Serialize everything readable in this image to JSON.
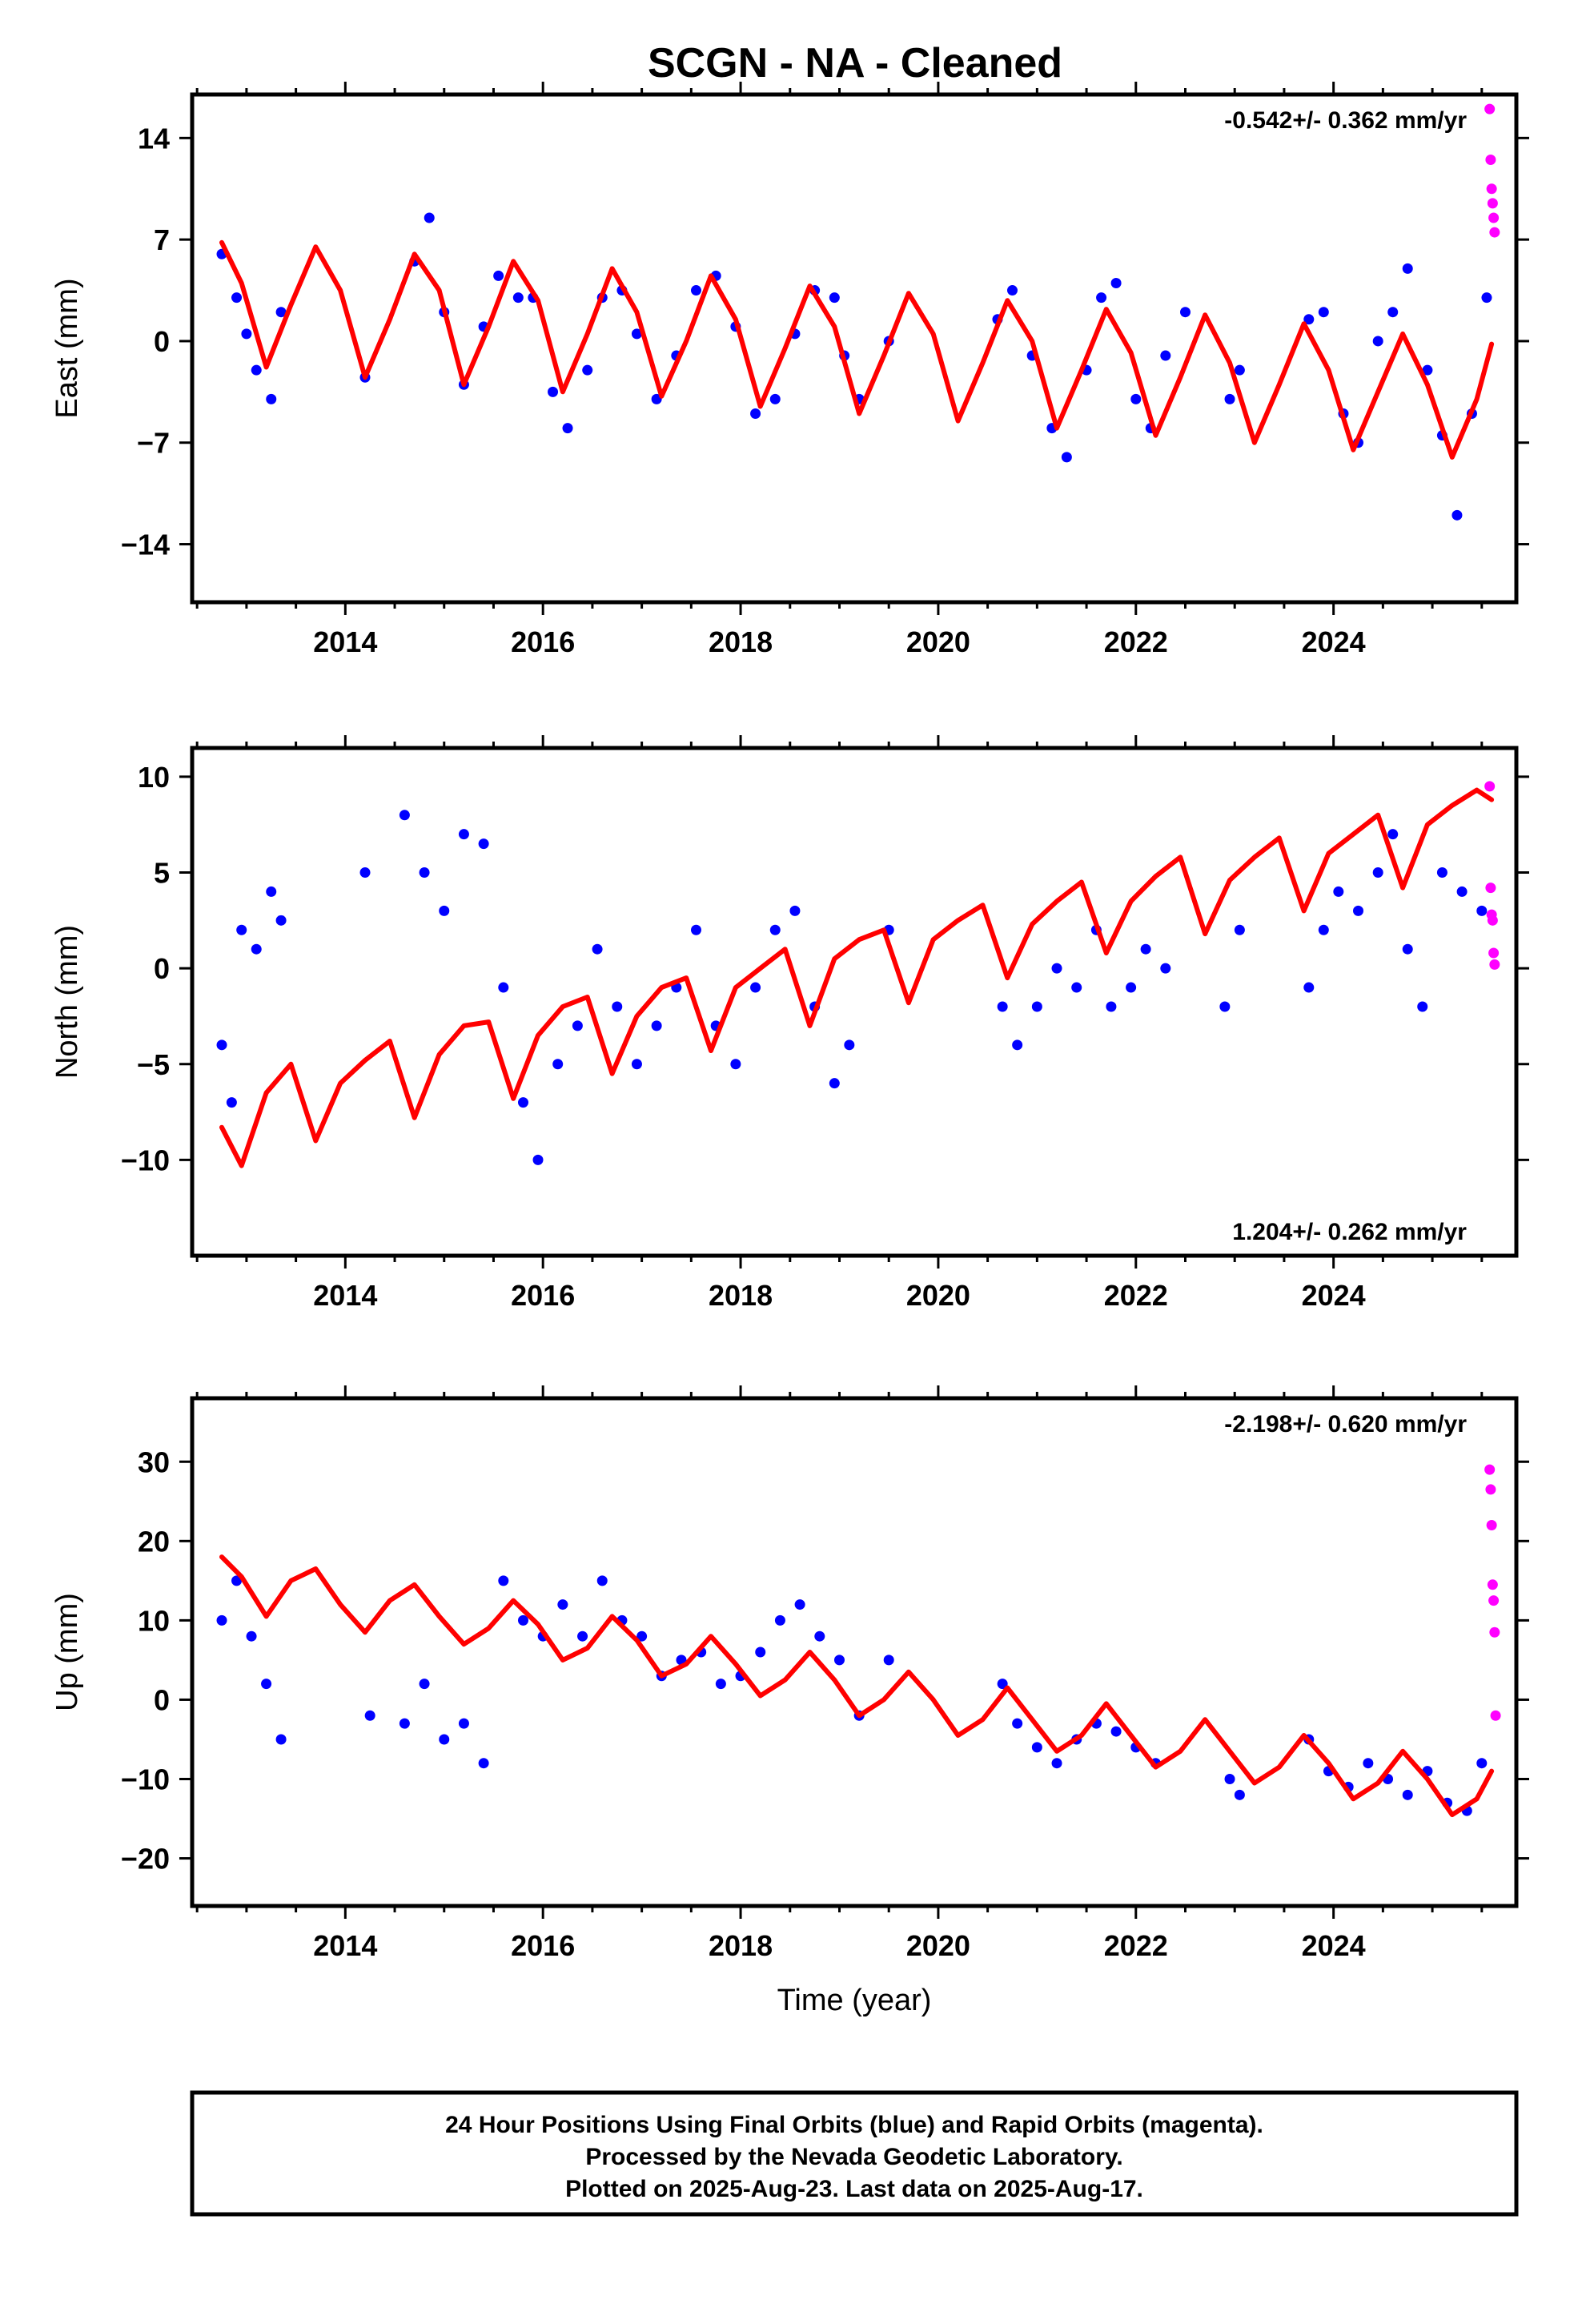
{
  "figure": {
    "title": "SCGN  - NA - Cleaned",
    "footer": [
      "24 Hour Positions Using Final Orbits (blue) and Rapid Orbits (magenta).",
      "Processed by the Nevada Geodetic Laboratory.",
      "Plotted on 2025-Aug-23. Last data on 2025-Aug-17."
    ],
    "colors": {
      "final": "#0000ff",
      "rapid": "#ff00ff",
      "model": "#ff0000",
      "frame": "#000000"
    }
  },
  "chart_data": [
    {
      "type": "scatter",
      "title": "",
      "xlabel": "",
      "ylabel": "East (mm)",
      "rate_label": "-0.542+/- 0.362 mm/yr",
      "rate_position": "top-right",
      "xlim": [
        2012.45,
        2025.85
      ],
      "ylim": [
        -18,
        17
      ],
      "xticks": [
        2014,
        2016,
        2018,
        2020,
        2022,
        2024
      ],
      "xtick_labels": [
        "2014",
        "2016",
        "2018",
        "2020",
        "2022",
        "2024"
      ],
      "yticks": [
        -14,
        -7,
        0,
        7,
        14
      ],
      "ytick_labels": [
        "−14",
        "−7",
        "0",
        "7",
        "14"
      ],
      "grid": false,
      "series": [
        {
          "name": "Final Orbits",
          "x": [
            2012.75,
            2012.9,
            2013.0,
            2013.1,
            2013.25,
            2013.35,
            2014.2,
            2014.7,
            2014.85,
            2015.0,
            2015.2,
            2015.4,
            2015.55,
            2015.75,
            2015.9,
            2016.1,
            2016.25,
            2016.45,
            2016.6,
            2016.8,
            2016.95,
            2017.15,
            2017.35,
            2017.55,
            2017.75,
            2017.95,
            2018.15,
            2018.35,
            2018.55,
            2018.75,
            2018.95,
            2019.05,
            2019.2,
            2019.5,
            2020.6,
            2020.75,
            2020.95,
            2021.15,
            2021.3,
            2021.5,
            2021.65,
            2021.8,
            2022.0,
            2022.15,
            2022.3,
            2022.5,
            2022.95,
            2023.05,
            2023.75,
            2023.9,
            2024.1,
            2024.25,
            2024.45,
            2024.6,
            2024.75,
            2024.95,
            2025.1,
            2025.25,
            2025.4,
            2025.55
          ],
          "y": [
            6.0,
            3.0,
            0.5,
            -2.0,
            -4.0,
            2.0,
            -2.5,
            5.5,
            8.5,
            2.0,
            -3.0,
            1.0,
            4.5,
            3.0,
            3.0,
            -3.5,
            -6.0,
            -2.0,
            3.0,
            3.5,
            0.5,
            -4.0,
            -1.0,
            3.5,
            4.5,
            1.0,
            -5.0,
            -4.0,
            0.5,
            3.5,
            3.0,
            -1.0,
            -4.0,
            0.0,
            1.5,
            3.5,
            -1.0,
            -6.0,
            -8.0,
            -2.0,
            3.0,
            4.0,
            -4.0,
            -6.0,
            -1.0,
            2.0,
            -4.0,
            -2.0,
            1.5,
            2.0,
            -5.0,
            -7.0,
            0.0,
            2.0,
            5.0,
            -2.0,
            -6.5,
            -12.0,
            -5.0,
            3.0
          ]
        },
        {
          "name": "Rapid Orbits",
          "x": [
            2025.58,
            2025.59,
            2025.6,
            2025.61,
            2025.62,
            2025.63
          ],
          "y": [
            16.0,
            12.5,
            10.5,
            9.5,
            8.5,
            7.5
          ]
        }
      ],
      "model_curve": {
        "x": [
          2012.75,
          2012.95,
          2013.2,
          2013.45,
          2013.7,
          2013.95,
          2014.2,
          2014.45,
          2014.7,
          2014.95,
          2015.2,
          2015.45,
          2015.7,
          2015.95,
          2016.2,
          2016.45,
          2016.7,
          2016.95,
          2017.2,
          2017.45,
          2017.7,
          2017.95,
          2018.2,
          2018.45,
          2018.7,
          2018.95,
          2019.2,
          2019.45,
          2019.7,
          2019.95,
          2020.2,
          2020.45,
          2020.7,
          2020.95,
          2021.2,
          2021.45,
          2021.7,
          2021.95,
          2022.2,
          2022.45,
          2022.7,
          2022.95,
          2023.2,
          2023.45,
          2023.7,
          2023.95,
          2024.2,
          2024.45,
          2024.7,
          2024.95,
          2025.2,
          2025.45,
          2025.6
        ],
        "y": [
          6.8,
          4.0,
          -1.8,
          2.5,
          6.5,
          3.5,
          -2.5,
          1.5,
          6.0,
          3.5,
          -3.0,
          1.0,
          5.5,
          2.8,
          -3.5,
          0.5,
          5.0,
          2.0,
          -3.8,
          0.0,
          4.5,
          1.5,
          -4.5,
          -0.5,
          3.8,
          1.0,
          -5.0,
          -1.0,
          3.3,
          0.5,
          -5.5,
          -1.5,
          2.8,
          0.0,
          -6.0,
          -2.0,
          2.2,
          -0.8,
          -6.5,
          -2.5,
          1.8,
          -1.5,
          -7.0,
          -3.0,
          1.2,
          -2.0,
          -7.5,
          -3.5,
          0.5,
          -3.0,
          -8.0,
          -4.0,
          -0.2
        ]
      }
    },
    {
      "type": "scatter",
      "title": "",
      "xlabel": "",
      "ylabel": "North (mm)",
      "rate_label": "1.204+/- 0.262 mm/yr",
      "rate_position": "bottom-right",
      "xlim": [
        2012.45,
        2025.85
      ],
      "ylim": [
        -15,
        11.5
      ],
      "xticks": [
        2014,
        2016,
        2018,
        2020,
        2022,
        2024
      ],
      "xtick_labels": [
        "2014",
        "2016",
        "2018",
        "2020",
        "2022",
        "2024"
      ],
      "yticks": [
        -10,
        -5,
        0,
        5,
        10
      ],
      "ytick_labels": [
        "−10",
        "−5",
        "0",
        "5",
        "10"
      ],
      "grid": false,
      "series": [
        {
          "name": "Final Orbits",
          "x": [
            2012.75,
            2012.85,
            2012.95,
            2013.1,
            2013.25,
            2013.35,
            2014.2,
            2014.6,
            2014.8,
            2015.0,
            2015.2,
            2015.4,
            2015.6,
            2015.8,
            2015.95,
            2016.15,
            2016.35,
            2016.55,
            2016.75,
            2016.95,
            2017.15,
            2017.35,
            2017.55,
            2017.75,
            2017.95,
            2018.15,
            2018.35,
            2018.55,
            2018.75,
            2018.95,
            2019.1,
            2019.5,
            2020.65,
            2020.8,
            2021.0,
            2021.2,
            2021.4,
            2021.6,
            2021.75,
            2021.95,
            2022.1,
            2022.3,
            2022.9,
            2023.05,
            2023.75,
            2023.9,
            2024.05,
            2024.25,
            2024.45,
            2024.6,
            2024.75,
            2024.9,
            2025.1,
            2025.3,
            2025.5
          ],
          "y": [
            -4.0,
            -7.0,
            2.0,
            1.0,
            4.0,
            2.5,
            5.0,
            8.0,
            5.0,
            3.0,
            7.0,
            6.5,
            -1.0,
            -7.0,
            -10.0,
            -5.0,
            -3.0,
            1.0,
            -2.0,
            -5.0,
            -3.0,
            -1.0,
            2.0,
            -3.0,
            -5.0,
            -1.0,
            2.0,
            3.0,
            -2.0,
            -6.0,
            -4.0,
            2.0,
            -2.0,
            -4.0,
            -2.0,
            0.0,
            -1.0,
            2.0,
            -2.0,
            -1.0,
            1.0,
            0.0,
            -2.0,
            2.0,
            -1.0,
            2.0,
            4.0,
            3.0,
            5.0,
            7.0,
            1.0,
            -2.0,
            5.0,
            4.0,
            3.0
          ]
        },
        {
          "name": "Rapid Orbits",
          "x": [
            2025.58,
            2025.59,
            2025.6,
            2025.61,
            2025.62,
            2025.63
          ],
          "y": [
            9.5,
            4.2,
            2.8,
            2.5,
            0.8,
            0.2
          ]
        }
      ],
      "model_curve": {
        "x": [
          2012.75,
          2012.95,
          2013.2,
          2013.45,
          2013.7,
          2013.95,
          2014.2,
          2014.45,
          2014.7,
          2014.95,
          2015.2,
          2015.45,
          2015.7,
          2015.95,
          2016.2,
          2016.45,
          2016.7,
          2016.95,
          2017.2,
          2017.45,
          2017.7,
          2017.95,
          2018.2,
          2018.45,
          2018.7,
          2018.95,
          2019.2,
          2019.45,
          2019.7,
          2019.95,
          2020.2,
          2020.45,
          2020.7,
          2020.95,
          2021.2,
          2021.45,
          2021.7,
          2021.95,
          2022.2,
          2022.45,
          2022.7,
          2022.95,
          2023.2,
          2023.45,
          2023.7,
          2023.95,
          2024.2,
          2024.45,
          2024.7,
          2024.95,
          2025.2,
          2025.45,
          2025.6
        ],
        "y": [
          -8.3,
          -10.3,
          -6.5,
          -5.0,
          -9.0,
          -6.0,
          -4.8,
          -3.8,
          -7.8,
          -4.5,
          -3.0,
          -2.8,
          -6.8,
          -3.5,
          -2.0,
          -1.5,
          -5.5,
          -2.5,
          -1.0,
          -0.5,
          -4.3,
          -1.0,
          0.0,
          1.0,
          -3.0,
          0.5,
          1.5,
          2.0,
          -1.8,
          1.5,
          2.5,
          3.3,
          -0.5,
          2.3,
          3.5,
          4.5,
          0.8,
          3.5,
          4.8,
          5.8,
          1.8,
          4.6,
          5.8,
          6.8,
          3.0,
          6.0,
          7.0,
          8.0,
          4.2,
          7.5,
          8.5,
          9.3,
          8.8
        ]
      }
    },
    {
      "type": "scatter",
      "title": "",
      "xlabel": "Time (year)",
      "ylabel": "Up (mm)",
      "rate_label": "-2.198+/- 0.620 mm/yr",
      "rate_position": "top-right",
      "xlim": [
        2012.45,
        2025.85
      ],
      "ylim": [
        -26,
        38
      ],
      "xticks": [
        2014,
        2016,
        2018,
        2020,
        2022,
        2024
      ],
      "xtick_labels": [
        "2014",
        "2016",
        "2018",
        "2020",
        "2022",
        "2024"
      ],
      "yticks": [
        -20,
        -10,
        0,
        10,
        20,
        30
      ],
      "ytick_labels": [
        "−20",
        "−10",
        "0",
        "10",
        "20",
        "30"
      ],
      "grid": false,
      "series": [
        {
          "name": "Final Orbits",
          "x": [
            2012.75,
            2012.9,
            2013.05,
            2013.2,
            2013.35,
            2014.25,
            2014.6,
            2014.8,
            2015.0,
            2015.2,
            2015.4,
            2015.6,
            2015.8,
            2016.0,
            2016.2,
            2016.4,
            2016.6,
            2016.8,
            2017.0,
            2017.2,
            2017.4,
            2017.6,
            2017.8,
            2018.0,
            2018.2,
            2018.4,
            2018.6,
            2018.8,
            2019.0,
            2019.2,
            2019.5,
            2020.65,
            2020.8,
            2021.0,
            2021.2,
            2021.4,
            2021.6,
            2021.8,
            2022.0,
            2022.2,
            2022.95,
            2023.05,
            2023.75,
            2023.95,
            2024.15,
            2024.35,
            2024.55,
            2024.75,
            2024.95,
            2025.15,
            2025.35,
            2025.5
          ],
          "y": [
            10.0,
            15.0,
            8.0,
            2.0,
            -5.0,
            -2.0,
            -3.0,
            2.0,
            -5.0,
            -3.0,
            -8.0,
            15.0,
            10.0,
            8.0,
            12.0,
            8.0,
            15.0,
            10.0,
            8.0,
            3.0,
            5.0,
            6.0,
            2.0,
            3.0,
            6.0,
            10.0,
            12.0,
            8.0,
            5.0,
            -2.0,
            5.0,
            2.0,
            -3.0,
            -6.0,
            -8.0,
            -5.0,
            -3.0,
            -4.0,
            -6.0,
            -8.0,
            -10.0,
            -12.0,
            -5.0,
            -9.0,
            -11.0,
            -8.0,
            -10.0,
            -12.0,
            -9.0,
            -13.0,
            -14.0,
            -8.0
          ]
        },
        {
          "name": "Rapid Orbits",
          "x": [
            2025.58,
            2025.59,
            2025.6,
            2025.61,
            2025.62,
            2025.63,
            2025.64
          ],
          "y": [
            29.0,
            26.5,
            22.0,
            14.5,
            12.5,
            8.5,
            -2.0
          ]
        }
      ],
      "model_curve": {
        "x": [
          2012.75,
          2012.95,
          2013.2,
          2013.45,
          2013.7,
          2013.95,
          2014.2,
          2014.45,
          2014.7,
          2014.95,
          2015.2,
          2015.45,
          2015.7,
          2015.95,
          2016.2,
          2016.45,
          2016.7,
          2016.95,
          2017.2,
          2017.45,
          2017.7,
          2017.95,
          2018.2,
          2018.45,
          2018.7,
          2018.95,
          2019.2,
          2019.45,
          2019.7,
          2019.95,
          2020.2,
          2020.45,
          2020.7,
          2020.95,
          2021.2,
          2021.45,
          2021.7,
          2021.95,
          2022.2,
          2022.45,
          2022.7,
          2022.95,
          2023.2,
          2023.45,
          2023.7,
          2023.95,
          2024.2,
          2024.45,
          2024.7,
          2024.95,
          2025.2,
          2025.45,
          2025.6
        ],
        "y": [
          18.0,
          15.5,
          10.5,
          15.0,
          16.5,
          12.0,
          8.5,
          12.5,
          14.5,
          10.5,
          7.0,
          9.0,
          12.5,
          9.5,
          5.0,
          6.5,
          10.5,
          7.5,
          3.0,
          4.5,
          8.0,
          4.5,
          0.5,
          2.5,
          6.0,
          2.5,
          -2.0,
          0.0,
          3.5,
          0.0,
          -4.5,
          -2.5,
          1.5,
          -2.5,
          -6.5,
          -4.5,
          -0.5,
          -4.5,
          -8.5,
          -6.5,
          -2.5,
          -6.5,
          -10.5,
          -8.5,
          -4.5,
          -8.0,
          -12.5,
          -10.5,
          -6.5,
          -10.0,
          -14.5,
          -12.5,
          -9.0
        ]
      }
    }
  ]
}
